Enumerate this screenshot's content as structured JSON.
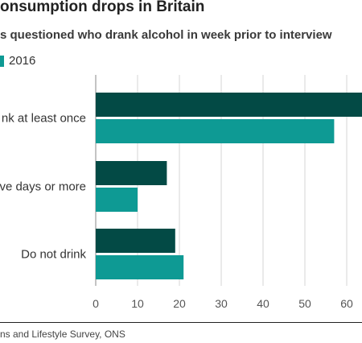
{
  "header": {
    "title": "onsumption drops in Britain",
    "subtitle": "s questioned who drank alcohol in week prior to interview"
  },
  "legend": {
    "items": [
      {
        "label": "2016",
        "color": "#0e9a94"
      }
    ]
  },
  "chart_data": {
    "type": "bar",
    "orientation": "horizontal",
    "title": "onsumption drops in Britain",
    "subtitle": "s questioned who drank alcohol in week prior to interview",
    "categories": [
      "nk at least once",
      "ve days or more",
      "Do not drink"
    ],
    "series": [
      {
        "values": [
          64,
          17,
          19
        ],
        "color": "#034a45"
      },
      {
        "name": "2016",
        "values": [
          57,
          10,
          21
        ],
        "color": "#0e9a94"
      }
    ],
    "xlim": [
      0,
      62
    ],
    "xticks": [
      "0",
      "10",
      "20",
      "30",
      "40",
      "50",
      "60"
    ],
    "grid": true,
    "legend_position": "top-left"
  },
  "footer": {
    "source": "ns and Lifestyle Survey, ONS"
  }
}
